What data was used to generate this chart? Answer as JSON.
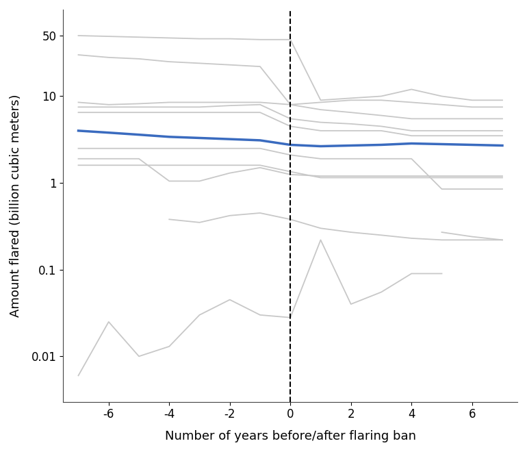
{
  "xlabel": "Number of years before/after flaring ban",
  "ylabel": "Amount flared (billion cubic meters)",
  "xlim": [
    -7.5,
    7.5
  ],
  "ylim_log": [
    0.003,
    100
  ],
  "dashed_x": 0,
  "blue_line": {
    "x": [
      -7,
      -6,
      -5,
      -4,
      -3,
      -2,
      -1,
      0,
      1,
      2,
      3,
      4,
      5,
      6,
      7
    ],
    "y": [
      4.0,
      3.8,
      3.6,
      3.4,
      3.3,
      3.2,
      3.1,
      2.75,
      2.65,
      2.7,
      2.75,
      2.85,
      2.8,
      2.75,
      2.7
    ]
  },
  "gray_lines": [
    {
      "x": [
        -7,
        -6,
        -5,
        -4,
        -3,
        -2,
        -1,
        0,
        1,
        2,
        3,
        4,
        5,
        6,
        7
      ],
      "y": [
        50,
        49,
        48,
        47,
        46,
        46,
        45,
        45,
        9,
        9.5,
        10,
        12,
        10,
        9,
        9
      ]
    },
    {
      "x": [
        -7,
        -6,
        -5,
        -4,
        -3,
        -2,
        -1,
        0,
        1,
        2,
        3,
        4,
        5,
        6,
        7
      ],
      "y": [
        30,
        28,
        27,
        25,
        24,
        23,
        22,
        8,
        8.5,
        9,
        9,
        8.5,
        8,
        7.5,
        7.5
      ]
    },
    {
      "x": [
        -7,
        -6,
        -5,
        -4,
        -3,
        -2,
        -1,
        0,
        1,
        2,
        3,
        4,
        5,
        6,
        7
      ],
      "y": [
        8.5,
        8,
        8.2,
        8.5,
        8.5,
        8.5,
        8.5,
        8.0,
        7.0,
        6.5,
        6.0,
        5.5,
        5.5,
        5.5,
        5.5
      ]
    },
    {
      "x": [
        -7,
        -6,
        -5,
        -4,
        -3,
        -2,
        -1,
        0,
        1,
        2,
        3,
        4,
        5,
        6,
        7
      ],
      "y": [
        7.5,
        7.5,
        7.5,
        7.5,
        7.5,
        7.8,
        8.0,
        5.5,
        5.0,
        4.8,
        4.5,
        4.0,
        4.0,
        4.0,
        4.0
      ]
    },
    {
      "x": [
        -7,
        -6,
        -5,
        -4,
        -3,
        -2,
        -1,
        0,
        1,
        2,
        3,
        4,
        5,
        6,
        7
      ],
      "y": [
        6.5,
        6.5,
        6.5,
        6.5,
        6.5,
        6.5,
        6.5,
        4.5,
        4.0,
        4.0,
        4.0,
        3.5,
        3.5,
        3.5,
        3.5
      ]
    },
    {
      "x": [
        -7,
        -6,
        -5,
        -4,
        -3,
        -2,
        -1,
        0,
        1,
        2,
        3,
        4,
        5,
        6,
        7
      ],
      "y": [
        2.5,
        2.5,
        2.5,
        2.5,
        2.5,
        2.5,
        2.5,
        2.1,
        1.9,
        1.9,
        1.9,
        1.9,
        0.85,
        0.85,
        0.85
      ]
    },
    {
      "x": [
        -7,
        -6,
        -5,
        -4,
        -3,
        -2,
        -1,
        0,
        1,
        2,
        3,
        4,
        5,
        6,
        7
      ],
      "y": [
        1.9,
        1.9,
        1.9,
        1.05,
        1.05,
        1.3,
        1.5,
        1.25,
        1.2,
        1.2,
        1.2,
        1.2,
        1.2,
        1.2,
        1.2
      ]
    },
    {
      "x": [
        -7,
        -6,
        -5,
        -4,
        -3,
        -2,
        -1,
        0,
        1,
        2,
        3,
        4,
        5,
        6,
        7
      ],
      "y": [
        1.6,
        1.6,
        1.6,
        1.6,
        1.6,
        1.6,
        1.6,
        1.35,
        1.15,
        1.15,
        1.15,
        1.15,
        1.15,
        1.15,
        1.15
      ]
    },
    {
      "x": [
        -4,
        -3,
        -2,
        -1,
        0,
        1,
        2,
        3,
        4,
        5,
        6,
        7
      ],
      "y": [
        0.38,
        0.35,
        0.42,
        0.45,
        0.38,
        0.3,
        0.27,
        0.25,
        0.23,
        0.22,
        0.22,
        0.22
      ]
    },
    {
      "x": [
        -7,
        -6,
        -5,
        -4,
        -3,
        -2,
        -1,
        0,
        1,
        2,
        3,
        4,
        5
      ],
      "y": [
        0.006,
        0.025,
        0.01,
        0.013,
        0.03,
        0.045,
        0.03,
        0.028,
        0.22,
        0.04,
        0.055,
        0.09,
        0.09
      ]
    },
    {
      "x": [
        5,
        6,
        7
      ],
      "y": [
        0.27,
        0.24,
        0.22
      ]
    }
  ],
  "gray_color": "#c8c8c8",
  "blue_color": "#3a6bbf",
  "background_color": "#ffffff",
  "xticks": [
    -6,
    -4,
    -2,
    0,
    2,
    4,
    6
  ],
  "yticks_log": [
    0.01,
    0.1,
    1,
    10,
    50
  ],
  "ytick_labels": [
    "0.01",
    "0.1",
    "1",
    "10",
    "50"
  ]
}
